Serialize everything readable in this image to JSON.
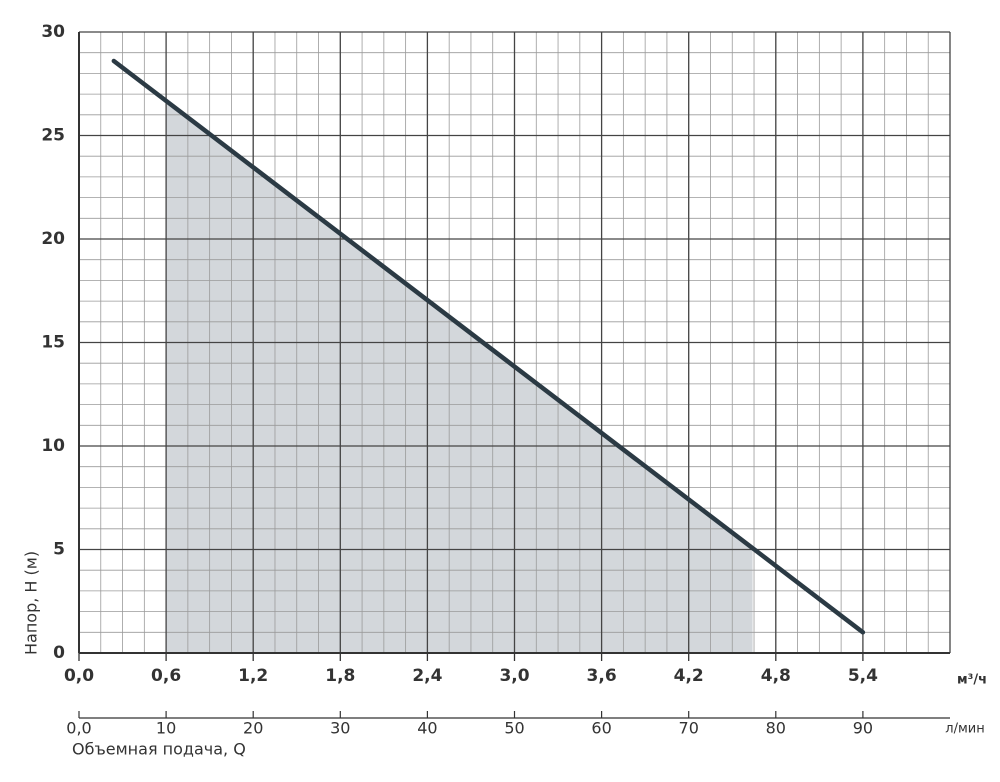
{
  "chart_data": {
    "type": "line",
    "y_label": "Напор, H (м)",
    "x_label": "Объемная подача, Q",
    "x_unit": "м³/ч",
    "x2_unit": "л/мин",
    "x": [
      0.24,
      5.4
    ],
    "series": [
      {
        "color": "#2b3a44",
        "values": [
          28.6,
          1.0
        ]
      }
    ],
    "shaded_range": [
      0.6,
      4.64
    ],
    "shade_color": "#d3d7db",
    "xlim": [
      0,
      6.0
    ],
    "ylim": [
      0,
      30
    ],
    "x2lim": [
      0,
      100
    ],
    "xticks": [
      {
        "value": 0,
        "label": "0,0"
      },
      {
        "value": 0.6,
        "label": "0,6"
      },
      {
        "value": 1.2,
        "label": "1,2"
      },
      {
        "value": 1.8,
        "label": "1,8"
      },
      {
        "value": 2.4,
        "label": "2,4"
      },
      {
        "value": 3.0,
        "label": "3,0"
      },
      {
        "value": 3.6,
        "label": "3,6"
      },
      {
        "value": 4.2,
        "label": "4,2"
      },
      {
        "value": 4.8,
        "label": "4,8"
      },
      {
        "value": 5.4,
        "label": "5,4"
      }
    ],
    "x2ticks": [
      {
        "value": 0,
        "label": "0,0"
      },
      10,
      20,
      30,
      40,
      50,
      60,
      70,
      80,
      90
    ],
    "yticks": [
      0,
      5,
      10,
      15,
      20,
      25,
      30
    ],
    "minor_grid": {
      "x": 0.15,
      "y": 1
    },
    "grid": true
  }
}
